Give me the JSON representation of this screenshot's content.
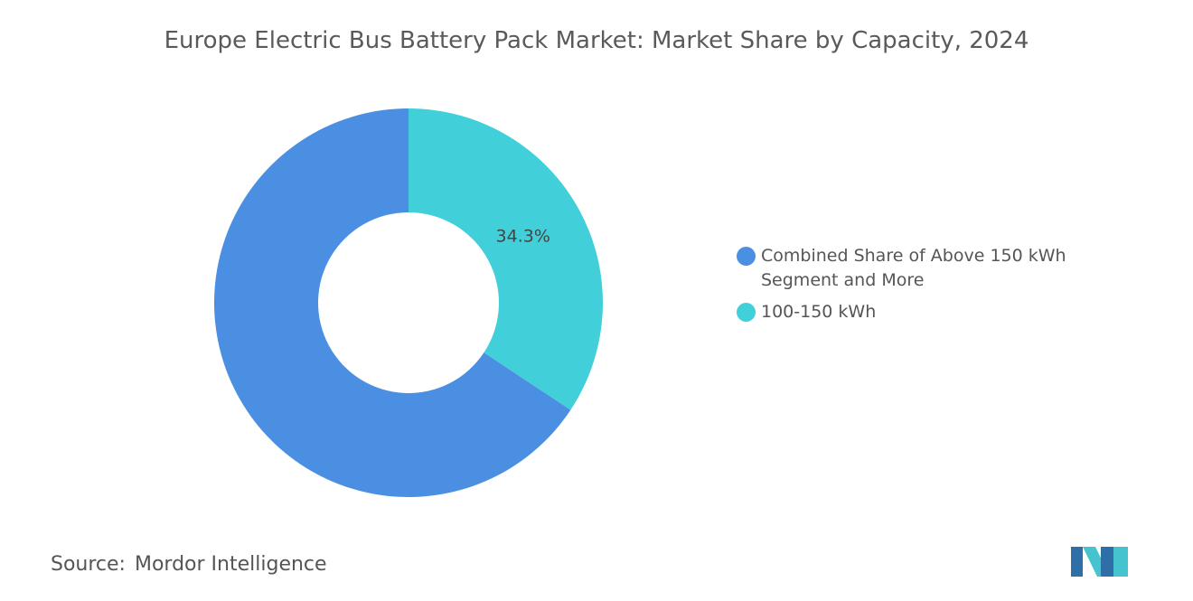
{
  "chart_data": {
    "type": "donut",
    "title": "Europe Electric Bus Battery Pack Market: Market Share by Capacity, 2024",
    "categories": [
      "Combined Share of Above 150 kWh Segment and More",
      "100-150 kWh"
    ],
    "values": [
      65.7,
      34.3
    ],
    "value_labels": [
      null,
      "34.3%"
    ],
    "colors": [
      "#4a8fe2",
      "#41d0da"
    ],
    "legend": "right"
  },
  "source": {
    "label": "Source:",
    "name": "Mordor Intelligence"
  }
}
